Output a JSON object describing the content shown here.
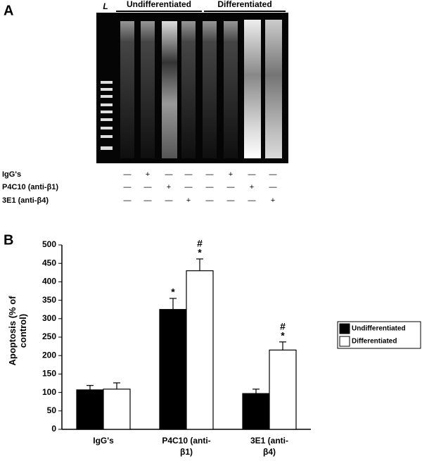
{
  "gel": {
    "panel_label": "A",
    "ladder_label": "L",
    "groups": [
      {
        "label": "Undifferentiated"
      },
      {
        "label": "Differentiated"
      }
    ],
    "rows": [
      {
        "label": "IgG's",
        "marks": [
          "—",
          "+",
          "—",
          "—",
          "—",
          "+",
          "—",
          "—"
        ]
      },
      {
        "label": "P4C10 (anti-β1)",
        "marks": [
          "—",
          "—",
          "+",
          "—",
          "—",
          "—",
          "+",
          "—"
        ]
      },
      {
        "label": "3E1 (anti-β4)",
        "marks": [
          "—",
          "—",
          "—",
          "+",
          "—",
          "—",
          "—",
          "+"
        ]
      }
    ]
  },
  "chart_data": {
    "type": "bar",
    "panel_label": "B",
    "y_label": "Apoptosis (% of control)",
    "categories": [
      "IgG's",
      "P4C10 (anti-β1)",
      "3E1 (anti-β4)"
    ],
    "series": [
      {
        "name": "Undifferentiated",
        "color": "#000000",
        "values": [
          107,
          325,
          97
        ],
        "errors": [
          12,
          30,
          12
        ],
        "annotations": [
          [],
          [
            "*"
          ],
          []
        ]
      },
      {
        "name": "Differentiated",
        "color": "#ffffff",
        "values": [
          109,
          430,
          215
        ],
        "errors": [
          17,
          32,
          22
        ],
        "annotations": [
          [],
          [
            "#",
            "*"
          ],
          [
            "#",
            "*"
          ]
        ]
      }
    ],
    "ylim": [
      0,
      500
    ],
    "yticks": [
      0,
      50,
      100,
      150,
      200,
      250,
      300,
      350,
      400,
      450,
      500
    ],
    "legend": "right",
    "grid": false
  }
}
